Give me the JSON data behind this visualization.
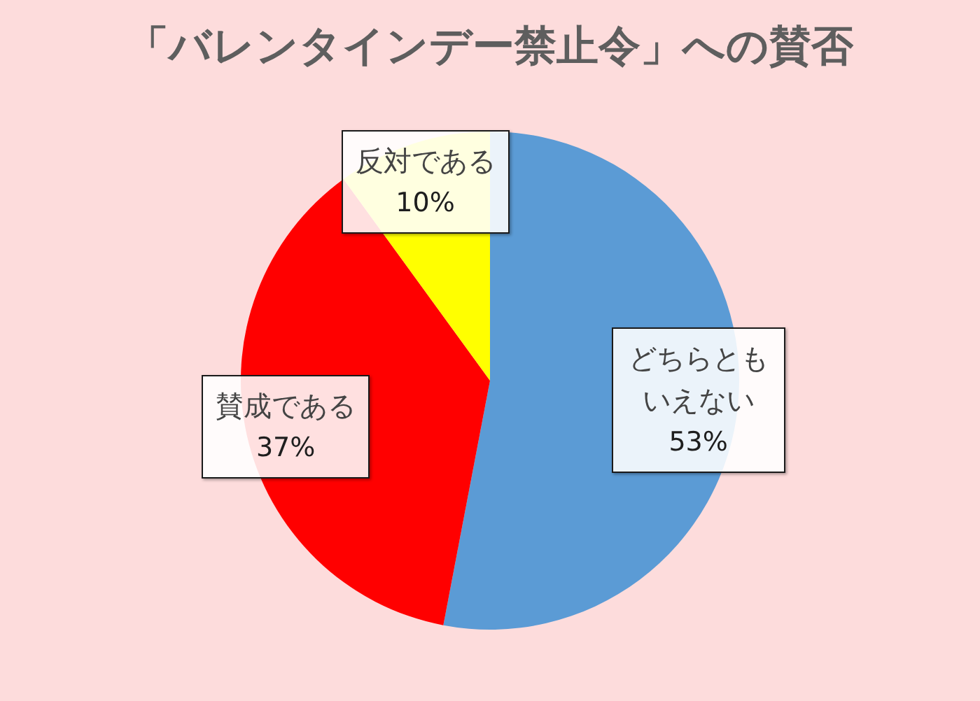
{
  "chart_data": {
    "type": "pie",
    "title": "「バレンタインデー禁止令」への賛否",
    "categories": [
      "どちらともいえない",
      "賛成である",
      "反対である"
    ],
    "values": [
      53,
      37,
      10
    ],
    "colors": [
      "#5b9bd5",
      "#ff0000",
      "#ffff00"
    ],
    "value_labels": [
      "53%",
      "37%",
      "10%"
    ]
  }
}
